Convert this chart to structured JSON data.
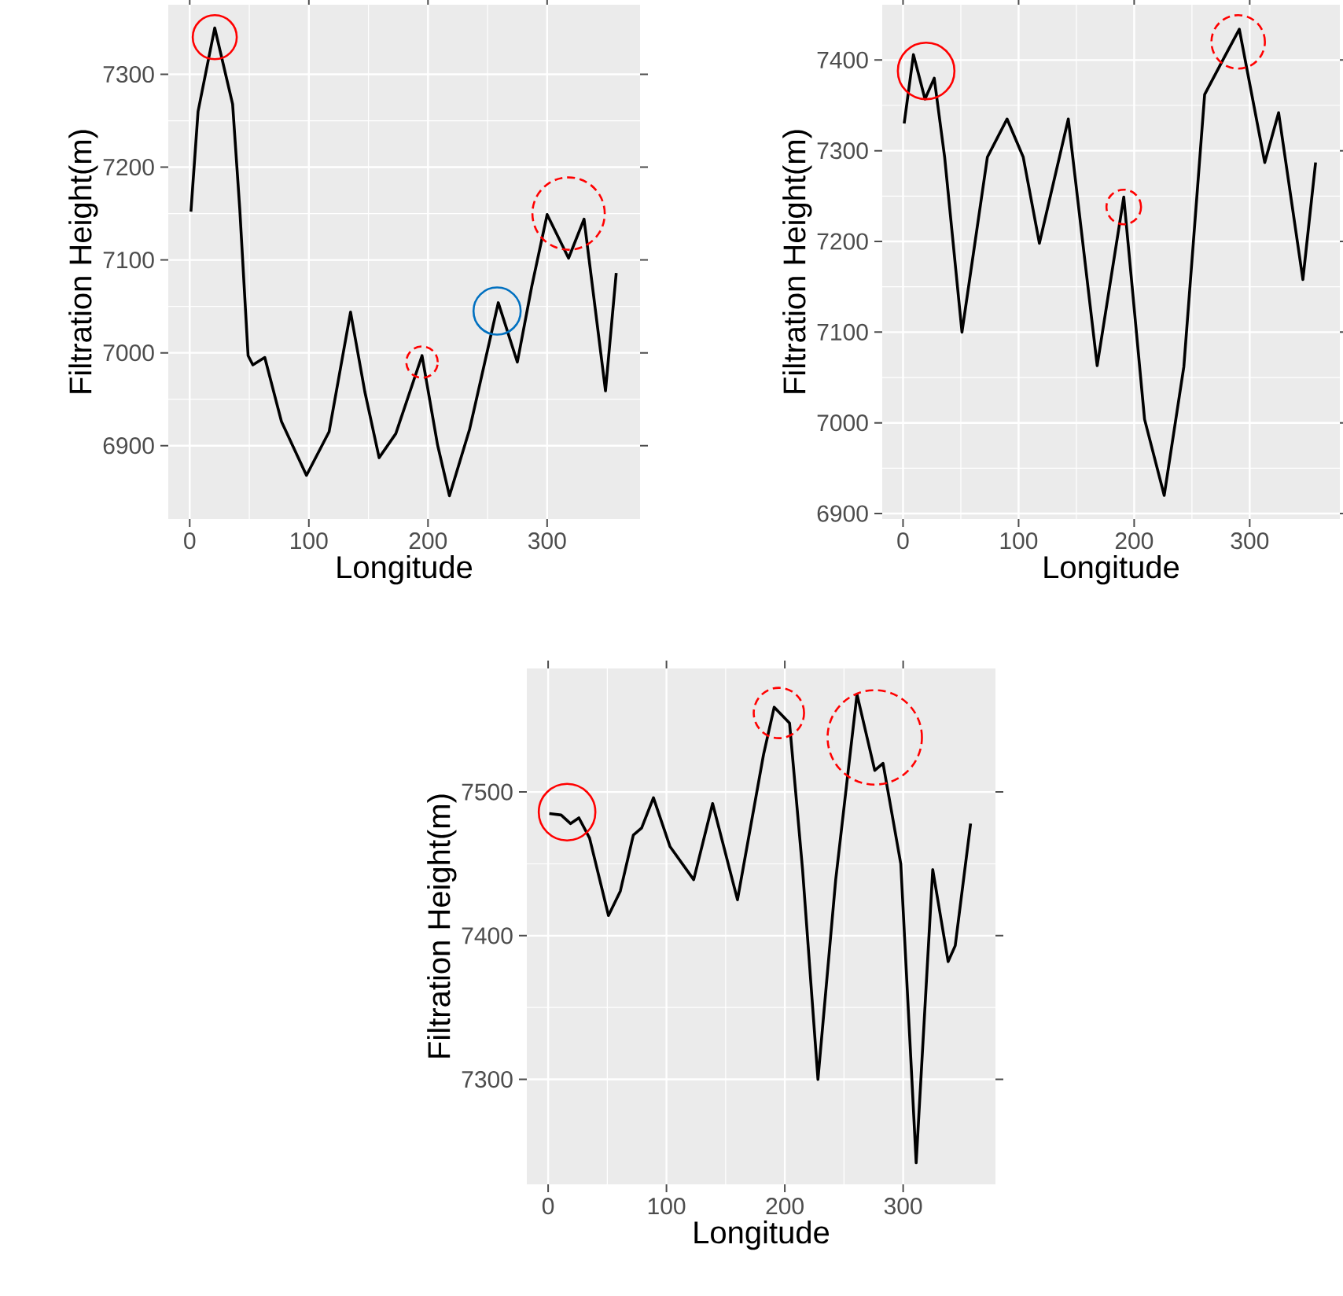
{
  "chart_data": [
    {
      "type": "line",
      "xlabel": "Longitude",
      "ylabel": "Filtration Height(m)",
      "grid": true,
      "xlim": [
        -18,
        378
      ],
      "ylim": [
        6821,
        7375
      ],
      "xticks": [
        0,
        100,
        200,
        300
      ],
      "yticks": [
        6900,
        7000,
        7100,
        7200,
        7300
      ],
      "x": [
        1,
        7,
        21,
        36,
        42,
        49,
        53,
        63,
        77,
        98,
        117,
        135,
        147,
        159,
        173,
        195,
        208,
        218,
        235,
        259,
        275,
        287,
        300,
        318,
        331,
        349,
        358
      ],
      "series": [
        {
          "color": "#000000",
          "values": [
            7152,
            7260,
            7350,
            7268,
            7155,
            6997,
            6987,
            6995,
            6926,
            6868,
            6915,
            7044,
            6958,
            6887,
            6913,
            6997,
            6901,
            6846,
            6918,
            7054,
            6990,
            7071,
            7149,
            7102,
            7144,
            6959,
            7086
          ]
        }
      ]
    },
    {
      "type": "line",
      "xlabel": "Longitude",
      "ylabel": "Filtration Height(m)",
      "grid": true,
      "xlim": [
        -18,
        378
      ],
      "ylim": [
        6894,
        7461
      ],
      "xticks": [
        0,
        100,
        200,
        300
      ],
      "yticks": [
        6900,
        7000,
        7100,
        7200,
        7300,
        7400
      ],
      "x": [
        1,
        9,
        19,
        27,
        36,
        51,
        73,
        90,
        104,
        118,
        143,
        168,
        191,
        209,
        226,
        243,
        261,
        278,
        291,
        313,
        325,
        346,
        357
      ],
      "series": [
        {
          "color": "#000000",
          "values": [
            7330,
            7406,
            7357,
            7380,
            7293,
            7100,
            7293,
            7335,
            7293,
            7198,
            7335,
            7063,
            7249,
            7004,
            6920,
            7062,
            7362,
            7403,
            7434,
            7287,
            7342,
            7158,
            7287
          ]
        }
      ]
    },
    {
      "type": "line",
      "xlabel": "Longitude",
      "ylabel": "Filtration Height(m)",
      "grid": true,
      "xlim": [
        -18,
        378
      ],
      "ylim": [
        7227,
        7586
      ],
      "xticks": [
        0,
        100,
        200,
        300
      ],
      "yticks": [
        7300,
        7400,
        7500
      ],
      "x": [
        1,
        11,
        19,
        26,
        35,
        51,
        61,
        72,
        79,
        89,
        103,
        123,
        139,
        160,
        182,
        191,
        204,
        215,
        228,
        243,
        261,
        276,
        283,
        298,
        311,
        325,
        338,
        344,
        357
      ],
      "series": [
        {
          "color": "#000000",
          "values": [
            7485,
            7484,
            7478,
            7482,
            7468,
            7414,
            7431,
            7470,
            7475,
            7496,
            7462,
            7439,
            7492,
            7425,
            7526,
            7559,
            7548,
            7446,
            7300,
            7439,
            7568,
            7515,
            7520,
            7450,
            7242,
            7446,
            7382,
            7393,
            7478
          ]
        }
      ]
    }
  ]
}
